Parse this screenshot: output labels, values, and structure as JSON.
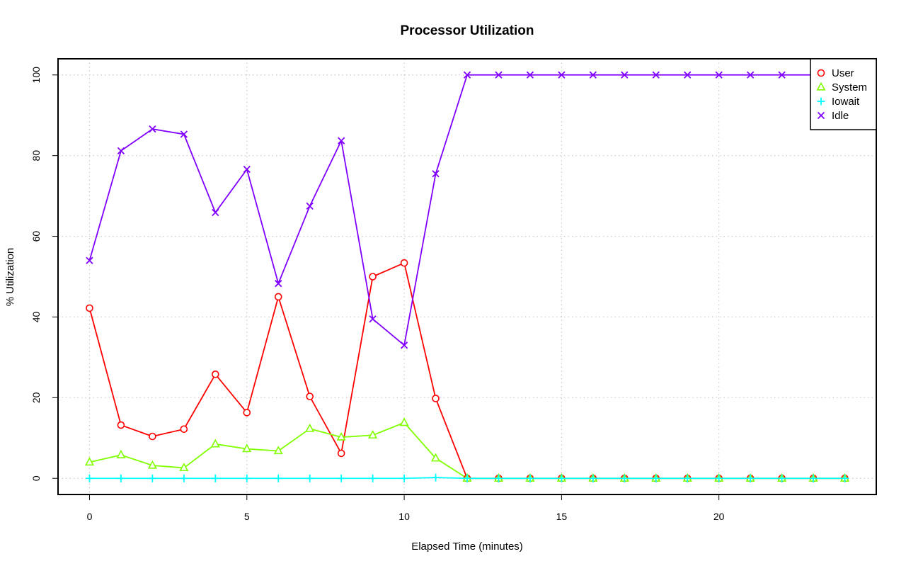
{
  "chart_data": {
    "type": "line",
    "title": "Processor Utilization",
    "xlabel": "Elapsed Time (minutes)",
    "ylabel": "% Utilization",
    "xlim": [
      -1,
      25
    ],
    "ylim": [
      -4,
      104
    ],
    "x_ticks": [
      0,
      5,
      10,
      15,
      20
    ],
    "y_ticks": [
      0,
      20,
      40,
      60,
      80,
      100
    ],
    "grid": true,
    "legend_position": "top-right",
    "x": [
      0,
      1,
      2,
      3,
      4,
      5,
      6,
      7,
      8,
      9,
      10,
      11,
      12,
      13,
      14,
      15,
      16,
      17,
      18,
      19,
      20,
      21,
      22,
      23,
      24
    ],
    "series": [
      {
        "name": "User",
        "color": "#ff0000",
        "marker": "circle",
        "values": [
          42.2,
          13.2,
          10.4,
          12.2,
          25.8,
          16.3,
          45.0,
          20.3,
          6.2,
          50.0,
          53.4,
          19.8,
          0,
          0,
          0,
          0,
          0,
          0,
          0,
          0,
          0,
          0,
          0,
          0,
          0
        ]
      },
      {
        "name": "System",
        "color": "#80ff00",
        "marker": "triangle",
        "values": [
          4.0,
          5.8,
          3.2,
          2.6,
          8.5,
          7.3,
          6.8,
          12.3,
          10.2,
          10.7,
          13.8,
          5.0,
          0,
          0,
          0,
          0,
          0,
          0,
          0,
          0,
          0,
          0,
          0,
          0,
          0
        ]
      },
      {
        "name": "Iowait",
        "color": "#00ffff",
        "marker": "plus",
        "values": [
          0,
          0,
          0,
          0,
          0,
          0,
          0,
          0,
          0,
          0,
          0,
          0.2,
          0,
          0,
          0,
          0,
          0,
          0,
          0,
          0,
          0,
          0,
          0,
          0,
          0
        ]
      },
      {
        "name": "Idle",
        "color": "#8000ff",
        "marker": "x",
        "values": [
          54.0,
          81.2,
          86.6,
          85.3,
          65.9,
          76.6,
          48.3,
          67.5,
          83.7,
          39.5,
          33.0,
          75.5,
          100,
          100,
          100,
          100,
          100,
          100,
          100,
          100,
          100,
          100,
          100,
          100,
          100
        ]
      }
    ]
  }
}
